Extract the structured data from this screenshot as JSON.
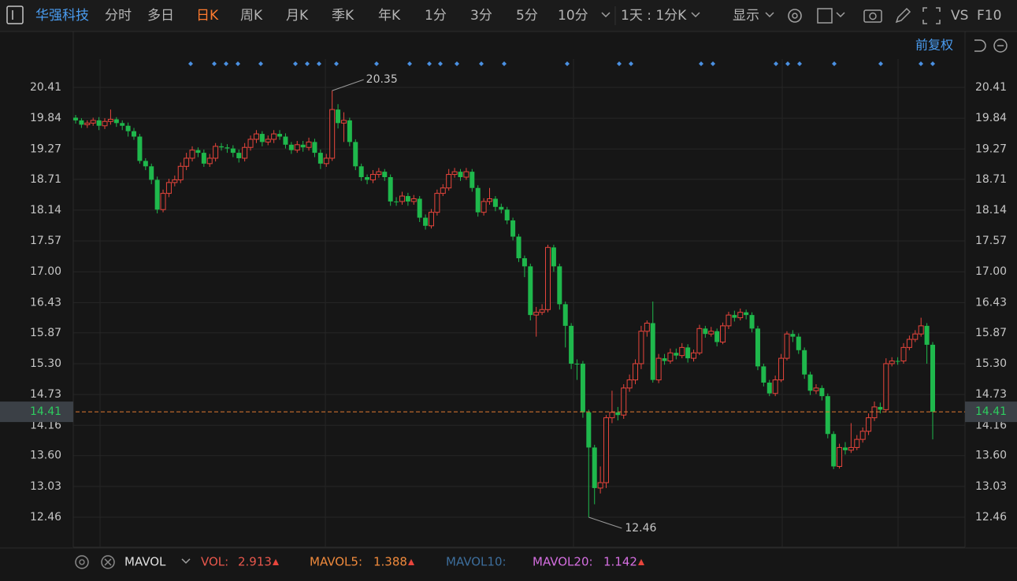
{
  "toolbar": {
    "stock": "华强科技",
    "tabs": [
      "分时",
      "多日",
      "日K",
      "周K",
      "月K",
      "季K",
      "年K",
      "1分",
      "3分",
      "5分",
      "10分"
    ],
    "period": "1天 : 1分K",
    "display": "显示",
    "vs": "VS",
    "f10": "F10"
  },
  "adjust": "前复权",
  "chart_data": {
    "type": "candlestick",
    "up_color": "#e8453c",
    "down_color": "#1fb84c",
    "ylim": [
      11.907,
      20.934
    ],
    "yticks": [
      20.41,
      19.84,
      19.27,
      18.71,
      18.14,
      17.57,
      {
        "value": 17,
        "label": "17.00"
      },
      16.43,
      15.87,
      {
        "value": 15.3,
        "label": "15.30"
      },
      14.73,
      14.16,
      {
        "value": 13.6,
        "label": "13.60"
      },
      13.03,
      12.46
    ],
    "grid": true,
    "last_price": 14.41,
    "high_label": 20.35,
    "low_label": 12.46,
    "open": [
      19.85,
      19.8,
      19.72,
      19.75,
      19.8,
      19.7,
      19.78,
      19.82,
      19.75,
      19.7,
      19.6,
      19.5,
      19.05,
      18.95,
      18.7,
      18.15,
      18.45,
      18.65,
      18.7,
      18.95,
      19.1,
      19.25,
      19.2,
      19.0,
      19.1,
      19.32,
      19.3,
      19.28,
      19.2,
      19.1,
      19.3,
      19.45,
      19.55,
      19.4,
      19.45,
      19.55,
      19.5,
      19.35,
      19.25,
      19.35,
      19.3,
      19.4,
      19.2,
      19.0,
      19.1,
      20.0,
      19.75,
      19.8,
      19.4,
      18.95,
      18.75,
      18.7,
      18.8,
      18.85,
      18.75,
      18.3,
      18.3,
      18.4,
      18.3,
      18.35,
      18.0,
      17.85,
      18.1,
      18.45,
      18.55,
      18.8,
      18.85,
      18.75,
      18.85,
      18.55,
      18.1,
      18.3,
      18.35,
      18.2,
      18.15,
      17.95,
      17.65,
      17.25,
      17.1,
      16.2,
      16.25,
      16.3,
      17.45,
      17.1,
      16.4,
      16.0,
      15.3,
      15.3,
      14.4,
      13.75,
      13.0,
      13.1,
      14.3,
      14.4,
      14.35,
      14.85,
      15.0,
      15.3,
      15.9,
      16.05,
      15.0,
      15.4,
      15.35,
      15.5,
      15.45,
      15.6,
      15.4,
      15.5,
      15.95,
      15.85,
      15.9,
      15.7,
      16.0,
      16.2,
      16.15,
      16.25,
      16.2,
      15.95,
      15.25,
      14.95,
      14.75,
      15.0,
      15.4,
      15.85,
      15.8,
      15.55,
      15.1,
      14.8,
      14.85,
      14.7,
      14.0,
      13.4,
      13.75,
      13.7,
      13.75,
      13.9,
      14.05,
      14.3,
      14.5,
      14.45,
      15.3,
      15.35,
      15.35,
      15.6,
      15.75,
      15.85,
      16.0,
      15.65
    ],
    "high": [
      19.9,
      19.84,
      19.8,
      19.85,
      19.86,
      19.84,
      20.0,
      19.86,
      19.8,
      19.76,
      19.66,
      19.55,
      19.1,
      19.0,
      18.76,
      18.52,
      18.72,
      18.78,
      19.02,
      19.2,
      19.32,
      19.3,
      19.26,
      19.18,
      19.38,
      19.38,
      19.36,
      19.34,
      19.26,
      19.38,
      19.52,
      19.62,
      19.6,
      19.52,
      19.62,
      19.62,
      19.56,
      19.4,
      19.42,
      19.42,
      19.48,
      19.46,
      19.26,
      19.18,
      20.35,
      20.1,
      19.95,
      19.85,
      19.45,
      19.0,
      18.8,
      18.88,
      18.92,
      18.9,
      18.8,
      18.38,
      18.48,
      18.46,
      18.42,
      18.4,
      18.06,
      18.16,
      18.52,
      18.62,
      18.9,
      18.92,
      18.9,
      18.92,
      18.9,
      18.6,
      18.36,
      18.55,
      18.4,
      18.26,
      18.2,
      18.0,
      17.7,
      17.3,
      17.15,
      16.35,
      16.4,
      17.5,
      17.5,
      17.15,
      16.45,
      16.05,
      15.38,
      15.35,
      14.45,
      13.8,
      13.4,
      14.35,
      14.8,
      14.5,
      14.92,
      15.1,
      15.38,
      16.0,
      16.1,
      16.45,
      15.48,
      15.48,
      15.58,
      15.58,
      15.68,
      15.66,
      15.56,
      16.02,
      16.0,
      15.98,
      15.95,
      16.06,
      16.26,
      16.28,
      16.32,
      16.3,
      16.25,
      16.0,
      15.3,
      15.0,
      15.08,
      15.48,
      15.9,
      15.92,
      15.86,
      15.6,
      15.15,
      14.92,
      14.9,
      14.75,
      14.05,
      13.82,
      13.85,
      14.2,
      13.98,
      14.12,
      14.38,
      14.6,
      14.58,
      15.4,
      15.42,
      15.42,
      15.68,
      15.82,
      15.92,
      16.15,
      16.05,
      15.7
    ],
    "low": [
      19.74,
      19.66,
      19.66,
      19.7,
      19.62,
      19.64,
      19.72,
      19.68,
      19.62,
      19.5,
      19.44,
      19.0,
      18.88,
      18.62,
      18.08,
      18.1,
      18.38,
      18.58,
      18.64,
      18.88,
      19.04,
      19.12,
      18.94,
      18.94,
      19.04,
      19.24,
      19.2,
      19.12,
      19.02,
      19.04,
      19.24,
      19.38,
      19.32,
      19.34,
      19.38,
      19.44,
      19.28,
      19.18,
      19.2,
      19.22,
      19.24,
      19.12,
      18.9,
      18.94,
      19.05,
      19.65,
      19.4,
      19.32,
      18.88,
      18.68,
      18.62,
      18.64,
      18.74,
      18.68,
      18.22,
      18.22,
      18.24,
      18.22,
      18.24,
      17.92,
      17.78,
      17.8,
      18.04,
      18.4,
      18.5,
      18.74,
      18.68,
      18.7,
      18.48,
      18.02,
      18.04,
      18.24,
      18.12,
      18.08,
      17.88,
      17.58,
      17.18,
      16.9,
      16.1,
      15.8,
      16.2,
      16.25,
      17.0,
      16.3,
      15.6,
      15.2,
      15.0,
      14.3,
      12.46,
      12.7,
      12.9,
      13.0,
      14.2,
      14.25,
      14.28,
      14.78,
      14.92,
      15.2,
      15.8,
      14.95,
      14.94,
      15.28,
      15.3,
      15.38,
      15.4,
      15.32,
      15.34,
      15.46,
      15.78,
      15.8,
      15.62,
      15.66,
      15.94,
      16.08,
      16.1,
      16.12,
      15.88,
      15.18,
      14.88,
      14.7,
      14.7,
      14.96,
      15.36,
      15.7,
      15.48,
      15.02,
      14.72,
      14.74,
      14.62,
      13.92,
      13.35,
      13.36,
      13.62,
      13.65,
      13.7,
      13.84,
      13.98,
      14.24,
      14.38,
      14.4,
      15.25,
      15.28,
      15.3,
      15.55,
      15.7,
      15.8,
      15.3,
      13.9
    ],
    "close": [
      19.8,
      19.72,
      19.75,
      19.8,
      19.7,
      19.78,
      19.82,
      19.75,
      19.7,
      19.6,
      19.5,
      19.05,
      18.95,
      18.7,
      18.15,
      18.45,
      18.65,
      18.7,
      18.95,
      19.1,
      19.25,
      19.2,
      19.0,
      19.1,
      19.32,
      19.3,
      19.28,
      19.2,
      19.1,
      19.3,
      19.45,
      19.55,
      19.4,
      19.45,
      19.55,
      19.5,
      19.35,
      19.25,
      19.35,
      19.3,
      19.4,
      19.2,
      19.0,
      19.1,
      20.0,
      19.75,
      19.8,
      19.4,
      18.95,
      18.75,
      18.7,
      18.8,
      18.85,
      18.75,
      18.3,
      18.3,
      18.4,
      18.3,
      18.35,
      18.0,
      17.85,
      18.1,
      18.45,
      18.55,
      18.8,
      18.85,
      18.75,
      18.85,
      18.55,
      18.1,
      18.3,
      18.35,
      18.2,
      18.15,
      17.95,
      17.65,
      17.25,
      17.1,
      16.2,
      16.25,
      16.3,
      17.45,
      17.1,
      16.4,
      16.0,
      15.3,
      15.3,
      14.4,
      13.75,
      13.0,
      13.1,
      14.3,
      14.4,
      14.35,
      14.85,
      15.0,
      15.3,
      15.9,
      16.05,
      15.0,
      15.4,
      15.35,
      15.5,
      15.45,
      15.6,
      15.4,
      15.5,
      15.95,
      15.85,
      15.9,
      15.7,
      16.0,
      16.2,
      16.15,
      16.25,
      16.2,
      15.95,
      15.25,
      14.95,
      14.75,
      15.0,
      15.4,
      15.85,
      15.8,
      15.55,
      15.1,
      14.8,
      14.85,
      14.7,
      14.0,
      13.4,
      13.75,
      13.7,
      13.75,
      13.9,
      14.05,
      14.3,
      14.5,
      14.45,
      15.3,
      15.35,
      15.35,
      15.6,
      15.75,
      15.85,
      16.0,
      15.65,
      14.41
    ]
  },
  "indicator_bar": {
    "name": "MAVOL",
    "items": [
      {
        "label": "VOL:",
        "value": "2.913"
      },
      {
        "label": "MAVOL5:",
        "value": "1.388"
      },
      {
        "label": "MAVOL10:"
      },
      {
        "label": "MAVOL20:",
        "value": "1.142"
      }
    ]
  }
}
